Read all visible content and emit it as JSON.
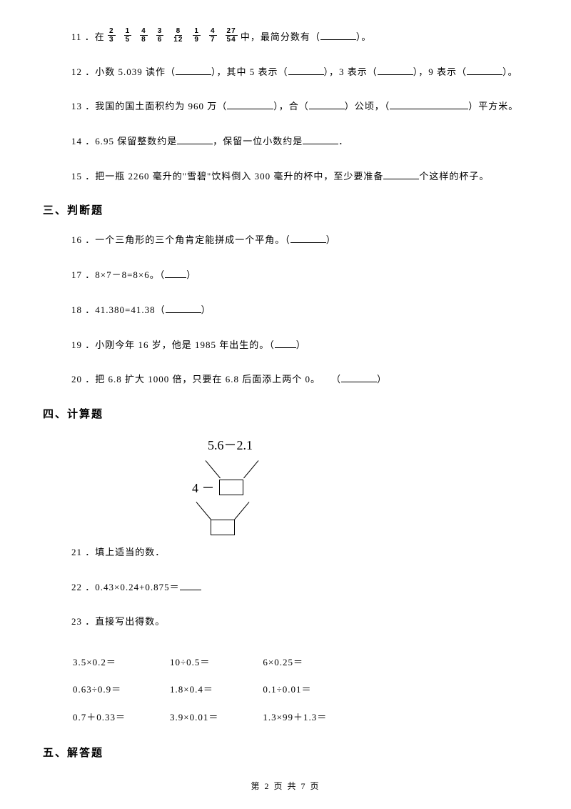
{
  "fractions": [
    {
      "num": "2",
      "den": "3"
    },
    {
      "num": "1",
      "den": "5"
    },
    {
      "num": "4",
      "den": "8"
    },
    {
      "num": "3",
      "den": "6"
    },
    {
      "num": "8",
      "den": "12"
    },
    {
      "num": "1",
      "den": "9"
    },
    {
      "num": "4",
      "den": "7"
    },
    {
      "num": "27",
      "den": "54"
    }
  ],
  "q11": {
    "prefix": "11 ．在",
    "suffix_a": "中，最简分数有（",
    "suffix_b": "）。",
    "seps": "、、、、、、、"
  },
  "q12": {
    "prefix": "12 ．小数 5.039 读作（",
    "p2": "），其中 5 表示（",
    "p3": "），3 表示（",
    "p4": "），9 表示（",
    "p5": "）。"
  },
  "q13": {
    "prefix": "13 ．我国的国土面积约为 960 万（",
    "p2": "），合（",
    "p3": "）公顷，（",
    "p4": "）平方米。"
  },
  "q14": {
    "prefix": "14 ．6.95 保留整数约是",
    "p2": "，保留一位小数约是",
    "p3": "．"
  },
  "q15": {
    "prefix": "15 ．把一瓶 2260 毫升的\"雪碧\"饮料倒入 300 毫升的杯中，至少要准备",
    "p2": "个这样的杯子。"
  },
  "section3": "三、判断题",
  "q16": {
    "prefix": "16 ．一个三角形的三个角肯定能拼成一个平角。（",
    "p2": "）"
  },
  "q17": {
    "prefix": "17 ．8×7－8=8×6。（",
    "p2": "）"
  },
  "q18": {
    "prefix": "18 ．41.380=41.38（",
    "p2": "）"
  },
  "q19": {
    "prefix": "19 ．小刚今年 16 岁，他是 1985 年出生的。（",
    "p2": "）"
  },
  "q20": {
    "prefix": "20 ．把 6.8 扩大 1000 倍，只要在 6.8 后面添上两个 0。　　（",
    "p2": "）"
  },
  "section4": "四、计算题",
  "diagram": {
    "top_expr": "5.6－2.1",
    "left_expr": "4 －"
  },
  "q21": "21 ．填上适当的数．",
  "q22": {
    "prefix": "22 ．0.43×0.24+0.875＝"
  },
  "q23": "23 ．直接写出得数。",
  "calc_rows": [
    [
      "3.5×0.2＝",
      "10÷0.5＝",
      "6×0.25＝"
    ],
    [
      "0.63÷0.9＝",
      "1.8×0.4＝",
      "0.1÷0.01＝"
    ],
    [
      "0.7＋0.33＝",
      "3.9×0.01＝",
      "1.3×99＋1.3＝"
    ]
  ],
  "section5": "五、解答题",
  "footer": "第 2 页 共 7 页"
}
